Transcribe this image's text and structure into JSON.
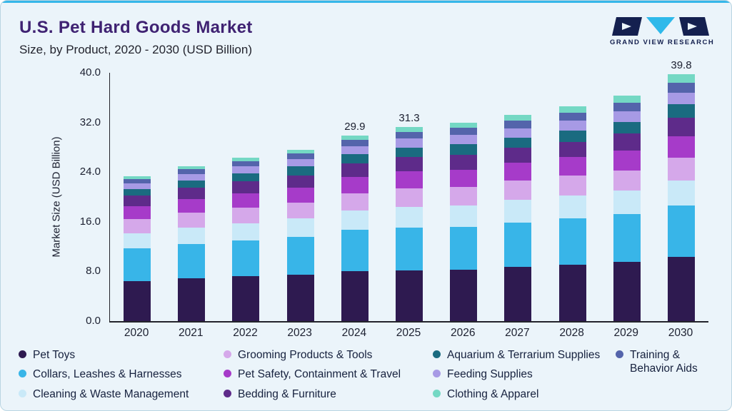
{
  "header": {
    "title": "U.S. Pet Hard Goods Market",
    "subtitle": "Size, by Product, 2020 - 2030 (USD Billion)",
    "logo_text": "GRAND VIEW RESEARCH"
  },
  "theme": {
    "card_background": "#ebf4fa",
    "card_border": "#b9d5e2",
    "accent_line": "#35b6e9",
    "title_color": "#3f2272",
    "text_color": "#1c2030",
    "legend_text_color": "#16213e",
    "logo_navy": "#14204f",
    "logo_cyan": "#2eb9ea"
  },
  "chart_data": {
    "type": "bar",
    "stacked": true,
    "title": "U.S. Pet Hard Goods Market Size, by Product, 2020 - 2030 (USD Billion)",
    "xlabel": "",
    "ylabel": "Market Size (USD Billion)",
    "ylim": [
      0,
      40
    ],
    "yticks": [
      "0.0",
      "8.0",
      "16.0",
      "24.0",
      "32.0",
      "40.0"
    ],
    "grid": false,
    "legend_position": "bottom",
    "categories": [
      "2020",
      "2021",
      "2022",
      "2023",
      "2024",
      "2025",
      "2026",
      "2027",
      "2028",
      "2029",
      "2030"
    ],
    "series": [
      {
        "name": "Pet Toys",
        "color": "#2e1a50",
        "values": [
          6.5,
          6.9,
          7.2,
          7.5,
          8.0,
          8.2,
          8.3,
          8.7,
          9.1,
          9.5,
          10.3
        ]
      },
      {
        "name": "Collars, Leashes & Harnesses",
        "color": "#38b5e8",
        "values": [
          5.2,
          5.5,
          5.8,
          6.1,
          6.7,
          6.9,
          6.9,
          7.2,
          7.4,
          7.7,
          8.3
        ]
      },
      {
        "name": "Cleaning & Waste Management",
        "color": "#c9e9f8",
        "values": [
          2.5,
          2.7,
          2.8,
          2.9,
          3.1,
          3.3,
          3.4,
          3.6,
          3.7,
          3.8,
          4.1
        ]
      },
      {
        "name": "Grooming Products & Tools",
        "color": "#d5a8ea",
        "values": [
          2.3,
          2.4,
          2.5,
          2.6,
          2.8,
          3.0,
          3.0,
          3.1,
          3.2,
          3.3,
          3.6
        ]
      },
      {
        "name": "Pet Safety, Containment & Travel",
        "color": "#a63bc9",
        "values": [
          2.0,
          2.2,
          2.3,
          2.4,
          2.6,
          2.7,
          2.8,
          2.9,
          3.0,
          3.2,
          3.5
        ]
      },
      {
        "name": "Bedding & Furniture",
        "color": "#5e2b8a",
        "values": [
          1.7,
          1.8,
          1.9,
          2.0,
          2.2,
          2.3,
          2.4,
          2.4,
          2.5,
          2.7,
          3.0
        ]
      },
      {
        "name": "Aquarium & Terrarium Supplies",
        "color": "#1a6b80",
        "values": [
          1.1,
          1.2,
          1.3,
          1.4,
          1.5,
          1.6,
          1.7,
          1.7,
          1.8,
          1.9,
          2.1
        ]
      },
      {
        "name": "Feeding Supplies",
        "color": "#a79ae5",
        "values": [
          0.9,
          1.0,
          1.1,
          1.2,
          1.3,
          1.4,
          1.5,
          1.5,
          1.6,
          1.7,
          1.9
        ]
      },
      {
        "name": "Training & Behavior Aids",
        "color": "#5464ab",
        "values": [
          0.7,
          0.8,
          0.8,
          0.9,
          1.0,
          1.1,
          1.1,
          1.2,
          1.3,
          1.4,
          1.6
        ]
      },
      {
        "name": "Clothing & Apparel",
        "color": "#74d8c4",
        "values": [
          0.5,
          0.5,
          0.6,
          0.6,
          0.7,
          0.8,
          0.8,
          0.9,
          1.0,
          1.1,
          1.4
        ]
      }
    ],
    "totals": [
      23.4,
      25.0,
      26.3,
      27.6,
      29.9,
      31.3,
      31.9,
      33.2,
      34.6,
      36.3,
      39.8
    ],
    "annotated_totals": [
      {
        "category": "2024",
        "label": "29.9"
      },
      {
        "category": "2025",
        "label": "31.3"
      },
      {
        "category": "2030",
        "label": "39.8"
      }
    ]
  },
  "legend": {
    "columns": [
      [
        0,
        1,
        2
      ],
      [
        3,
        4,
        5
      ],
      [
        6,
        7,
        9
      ],
      [
        8
      ]
    ]
  }
}
